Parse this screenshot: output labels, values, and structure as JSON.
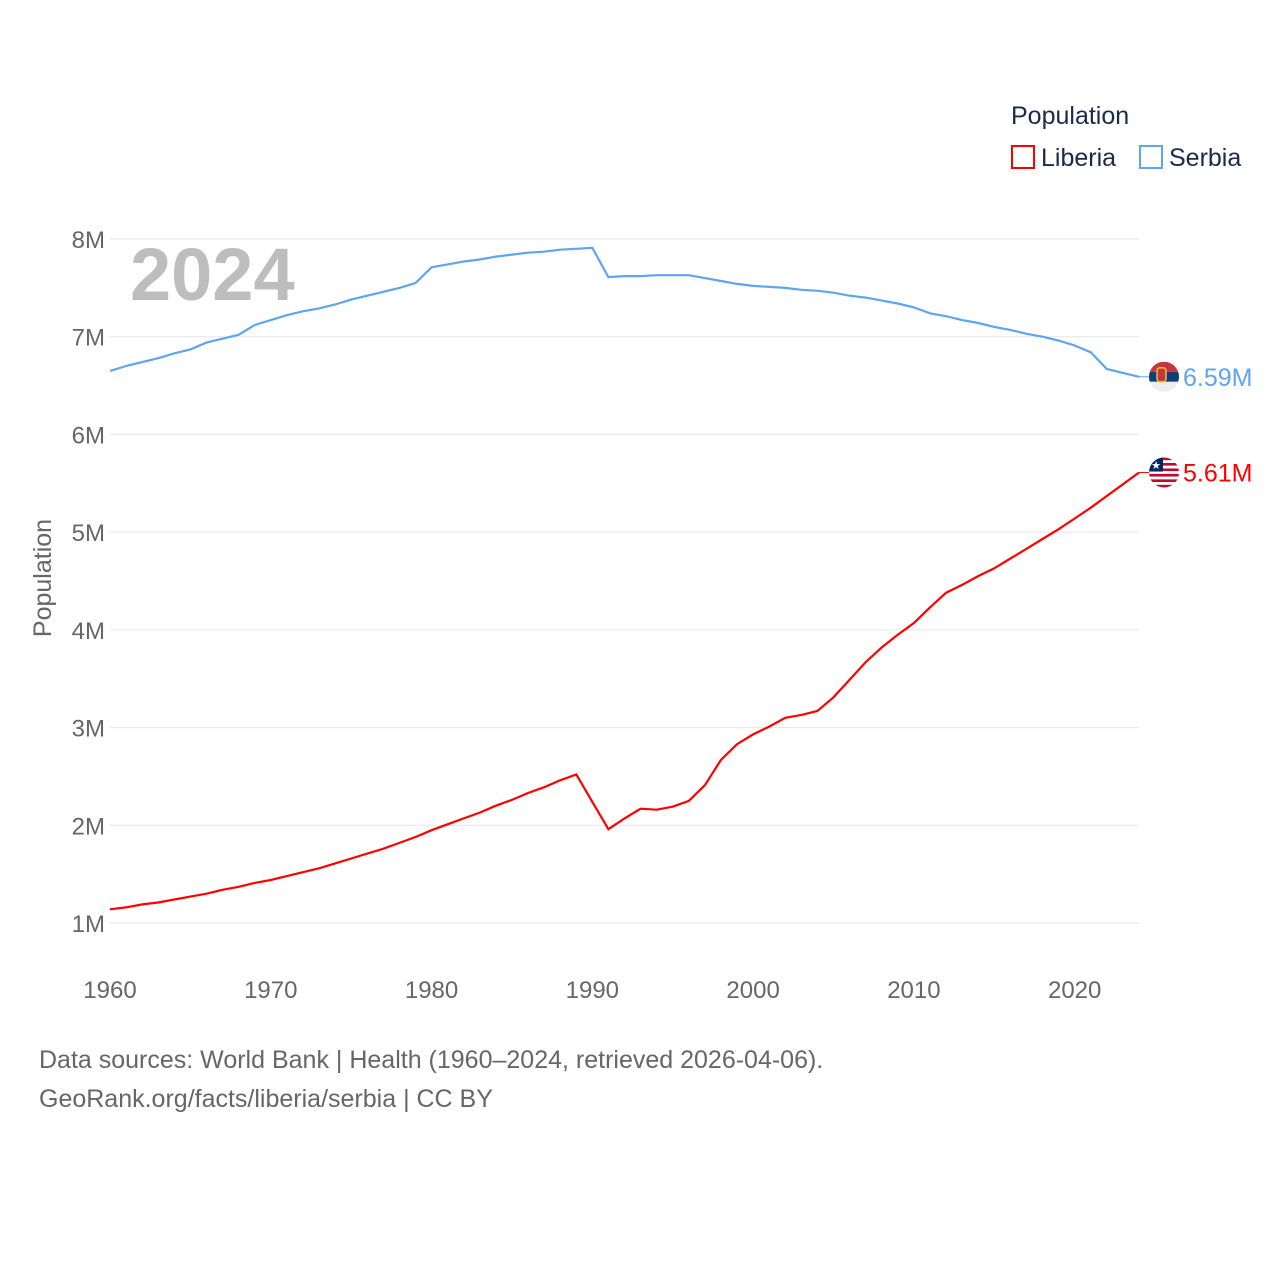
{
  "chart_data": {
    "type": "line",
    "title": "",
    "ylabel": "Population",
    "xlabel": "",
    "year_watermark": "2024",
    "xlim": [
      1960,
      2024
    ],
    "ylim": [
      1000000,
      8000000
    ],
    "x_ticks": [
      1960,
      1970,
      1980,
      1990,
      2000,
      2010,
      2020
    ],
    "x_tick_labels": [
      "1960",
      "1970",
      "1980",
      "1990",
      "2000",
      "2010",
      "2020"
    ],
    "y_ticks": [
      1000000,
      2000000,
      3000000,
      4000000,
      5000000,
      6000000,
      7000000,
      8000000
    ],
    "y_tick_labels": [
      "1M",
      "2M",
      "3M",
      "4M",
      "5M",
      "6M",
      "7M",
      "8M"
    ],
    "grid": true,
    "legend": {
      "title": "Population",
      "placement": "top-right"
    },
    "x_start": 1960,
    "series": [
      {
        "name": "Liberia",
        "color": "#ff0000",
        "end_label": "5.61M",
        "flag": "liberia-flag",
        "values_millions": [
          1.14,
          1.16,
          1.19,
          1.21,
          1.24,
          1.27,
          1.3,
          1.34,
          1.37,
          1.41,
          1.44,
          1.48,
          1.52,
          1.56,
          1.61,
          1.66,
          1.71,
          1.76,
          1.82,
          1.88,
          1.95,
          2.01,
          2.07,
          2.13,
          2.2,
          2.26,
          2.33,
          2.39,
          2.46,
          2.52,
          2.24,
          1.96,
          2.07,
          2.17,
          2.16,
          2.19,
          2.25,
          2.41,
          2.67,
          2.83,
          2.93,
          3.01,
          3.1,
          3.13,
          3.17,
          3.31,
          3.49,
          3.67,
          3.82,
          3.95,
          4.07,
          4.23,
          4.38,
          4.46,
          4.55,
          4.63,
          4.73,
          4.83,
          4.93,
          5.03,
          5.14,
          5.25,
          5.37,
          5.49,
          5.61
        ]
      },
      {
        "name": "Serbia",
        "color": "#5da5f0",
        "end_label": "6.59M",
        "flag": "serbia-flag",
        "values_millions": [
          6.65,
          6.7,
          6.74,
          6.78,
          6.83,
          6.87,
          6.94,
          6.98,
          7.02,
          7.12,
          7.17,
          7.22,
          7.26,
          7.29,
          7.33,
          7.38,
          7.42,
          7.46,
          7.5,
          7.55,
          7.71,
          7.74,
          7.77,
          7.79,
          7.82,
          7.84,
          7.86,
          7.87,
          7.89,
          7.9,
          7.91,
          7.61,
          7.62,
          7.62,
          7.63,
          7.63,
          7.63,
          7.6,
          7.57,
          7.54,
          7.52,
          7.51,
          7.5,
          7.48,
          7.47,
          7.45,
          7.42,
          7.4,
          7.37,
          7.34,
          7.3,
          7.24,
          7.21,
          7.17,
          7.14,
          7.1,
          7.07,
          7.03,
          7.0,
          6.96,
          6.91,
          6.84,
          6.67,
          6.63,
          6.59
        ]
      }
    ]
  },
  "footer": {
    "sources": "Data sources: World Bank | Health (1960–2024, retrieved 2026-04-06).",
    "attribution": "GeoRank.org/facts/liberia/serbia | CC BY"
  }
}
